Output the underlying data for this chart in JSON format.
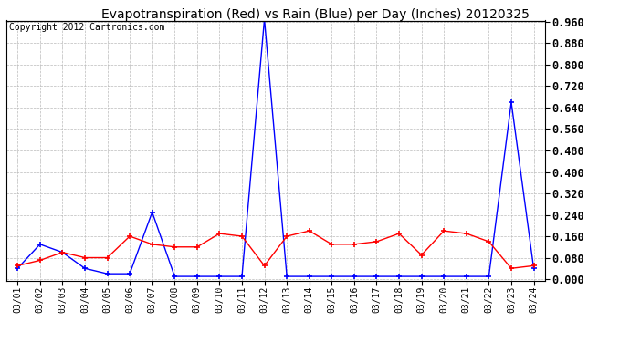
{
  "title": "Evapotranspiration (Red) vs Rain (Blue) per Day (Inches) 20120325",
  "copyright": "Copyright 2012 Cartronics.com",
  "x_labels": [
    "03/01",
    "03/02",
    "03/03",
    "03/04",
    "03/05",
    "03/06",
    "03/07",
    "03/08",
    "03/09",
    "03/10",
    "03/11",
    "03/12",
    "03/13",
    "03/14",
    "03/15",
    "03/16",
    "03/17",
    "03/18",
    "03/19",
    "03/20",
    "03/21",
    "03/22",
    "03/23",
    "03/24"
  ],
  "rain_blue": [
    0.04,
    0.13,
    0.1,
    0.04,
    0.02,
    0.02,
    0.25,
    0.01,
    0.01,
    0.01,
    0.01,
    0.97,
    0.01,
    0.01,
    0.01,
    0.01,
    0.01,
    0.01,
    0.01,
    0.01,
    0.01,
    0.01,
    0.66,
    0.04
  ],
  "et_red": [
    0.05,
    0.07,
    0.1,
    0.08,
    0.08,
    0.16,
    0.13,
    0.12,
    0.12,
    0.17,
    0.16,
    0.05,
    0.16,
    0.18,
    0.13,
    0.13,
    0.14,
    0.17,
    0.09,
    0.18,
    0.17,
    0.14,
    0.04,
    0.05
  ],
  "y_ticks": [
    0.0,
    0.08,
    0.16,
    0.24,
    0.32,
    0.4,
    0.48,
    0.56,
    0.64,
    0.72,
    0.8,
    0.88,
    0.96
  ],
  "ylim": [
    0.0,
    0.96
  ],
  "blue_color": "#0000FF",
  "red_color": "#FF0000",
  "bg_color": "#FFFFFF",
  "grid_color": "#BBBBBB",
  "title_fontsize": 10,
  "copyright_fontsize": 7,
  "tick_fontsize": 8.5,
  "xtick_fontsize": 7
}
